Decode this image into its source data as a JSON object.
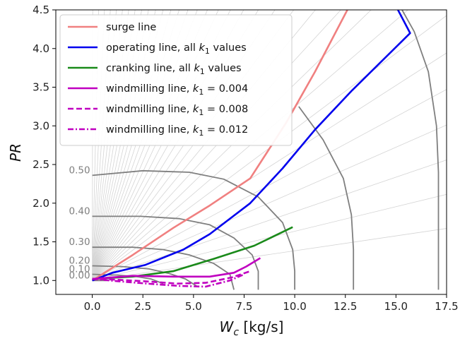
{
  "chart_data": {
    "type": "line",
    "xlabel_main": "W",
    "xlabel_sub": "c",
    "xlabel_unit": " [kg/s]",
    "ylabel": "PR",
    "xlim": [
      -1.8,
      17.5
    ],
    "ylim": [
      0.82,
      4.5
    ],
    "xticks": [
      "0.0",
      "2.5",
      "5.0",
      "7.5",
      "10.0",
      "12.5",
      "15.0",
      "17.5"
    ],
    "xtick_values": [
      0,
      2.5,
      5,
      7.5,
      10,
      12.5,
      15,
      17.5
    ],
    "yticks": [
      "1.0",
      "1.5",
      "2.0",
      "2.5",
      "3.0",
      "3.5",
      "4.0",
      "4.5"
    ],
    "ytick_values": [
      1.0,
      1.5,
      2.0,
      2.5,
      3.0,
      3.5,
      4.0,
      4.5
    ],
    "grid": false,
    "legend_placement": "upper-left",
    "speed_lines": [
      {
        "label": "0.00",
        "points": [
          [
            0,
            1.0
          ],
          [
            0.7,
            1.0
          ]
        ]
      },
      {
        "label": "0.10",
        "points": [
          [
            0,
            1.08
          ],
          [
            1.2,
            1.07
          ],
          [
            2.2,
            1.05
          ],
          [
            2.9,
            1.02
          ],
          [
            3.5,
            0.96
          ]
        ]
      },
      {
        "label": "0.20",
        "points": [
          [
            0,
            1.19
          ],
          [
            1.5,
            1.18
          ],
          [
            2.8,
            1.15
          ],
          [
            3.8,
            1.09
          ],
          [
            4.6,
            1.02
          ],
          [
            5.2,
            0.92
          ]
        ]
      },
      {
        "label": "0.30",
        "points": [
          [
            0,
            1.43
          ],
          [
            2.0,
            1.43
          ],
          [
            3.5,
            1.4
          ],
          [
            4.8,
            1.33
          ],
          [
            6.0,
            1.22
          ],
          [
            6.8,
            1.08
          ],
          [
            7.0,
            0.88
          ]
        ]
      },
      {
        "label": "0.40",
        "points": [
          [
            0,
            1.83
          ],
          [
            2.4,
            1.83
          ],
          [
            4.3,
            1.8
          ],
          [
            5.8,
            1.72
          ],
          [
            7.0,
            1.55
          ],
          [
            7.9,
            1.33
          ],
          [
            8.2,
            1.12
          ],
          [
            8.2,
            0.88
          ]
        ]
      },
      {
        "label": "0.50",
        "points": [
          [
            0,
            2.36
          ],
          [
            2.5,
            2.42
          ],
          [
            4.8,
            2.4
          ],
          [
            6.5,
            2.31
          ],
          [
            8.2,
            2.08
          ],
          [
            9.4,
            1.75
          ],
          [
            9.9,
            1.4
          ],
          [
            10.0,
            1.12
          ],
          [
            10.0,
            0.88
          ]
        ]
      },
      {
        "label": "",
        "points": [
          [
            10.2,
            3.25
          ],
          [
            11.4,
            2.82
          ],
          [
            12.4,
            2.32
          ],
          [
            12.8,
            1.85
          ],
          [
            12.9,
            1.4
          ],
          [
            12.9,
            0.88
          ]
        ]
      },
      {
        "label": "",
        "points": [
          [
            15.3,
            4.5
          ],
          [
            15.9,
            4.22
          ],
          [
            16.6,
            3.7
          ],
          [
            17.0,
            3.0
          ],
          [
            17.1,
            2.4
          ],
          [
            17.1,
            1.6
          ],
          [
            17.1,
            0.88
          ]
        ]
      }
    ],
    "series": [
      {
        "name": "surge line",
        "color": "#f08080",
        "dash": "solid",
        "x": [
          0,
          2,
          4,
          5.8,
          7.8,
          9.6,
          11.0,
          12.6
        ],
        "y": [
          1.0,
          1.33,
          1.68,
          1.97,
          2.32,
          3.05,
          3.7,
          4.5
        ]
      },
      {
        "name": "operating line, all ",
        "name_math": "k",
        "name_sub": "1",
        "name_tail": " values",
        "color": "#0000ee",
        "dash": "solid",
        "x": [
          0,
          1,
          2.6,
          4.5,
          5.8,
          7.8,
          9.4,
          11.0,
          12.8,
          15.7,
          15.1
        ],
        "y": [
          1.0,
          1.1,
          1.2,
          1.4,
          1.6,
          2.0,
          2.45,
          2.95,
          3.45,
          4.2,
          4.5
        ]
      },
      {
        "name": "cranking line, all ",
        "name_math": "k",
        "name_sub": "1",
        "name_tail": " values",
        "color": "#1a8a1a",
        "dash": "solid",
        "x": [
          0,
          2,
          4,
          6,
          8,
          9.9
        ],
        "y": [
          1.02,
          1.05,
          1.12,
          1.28,
          1.45,
          1.69
        ]
      },
      {
        "name": "windmilling line, ",
        "name_math": "k",
        "name_sub": "1",
        "name_tail": " = 0.004",
        "color": "#c000c0",
        "dash": "solid",
        "x": [
          0,
          2,
          4,
          5.8,
          7.0,
          7.6,
          8.3
        ],
        "y": [
          1.02,
          1.06,
          1.05,
          1.05,
          1.1,
          1.18,
          1.29
        ]
      },
      {
        "name": "windmilling line, ",
        "name_math": "k",
        "name_sub": "1",
        "name_tail": " = 0.008",
        "color": "#c000c0",
        "dash": "dashed",
        "x": [
          0,
          1.2,
          2.6,
          4.2,
          5.6,
          6.9,
          7.8
        ],
        "y": [
          1.02,
          1.01,
          0.99,
          0.96,
          0.97,
          1.04,
          1.12
        ]
      },
      {
        "name": "windmilling line, ",
        "name_math": "k",
        "name_sub": "1",
        "name_tail": " = 0.012",
        "color": "#c000c0",
        "dash": "dashdot",
        "x": [
          0,
          1.3,
          2.7,
          4.3,
          5.6,
          6.8,
          7.5
        ],
        "y": [
          1.02,
          0.99,
          0.96,
          0.93,
          0.92,
          1.0,
          1.08
        ]
      }
    ]
  }
}
